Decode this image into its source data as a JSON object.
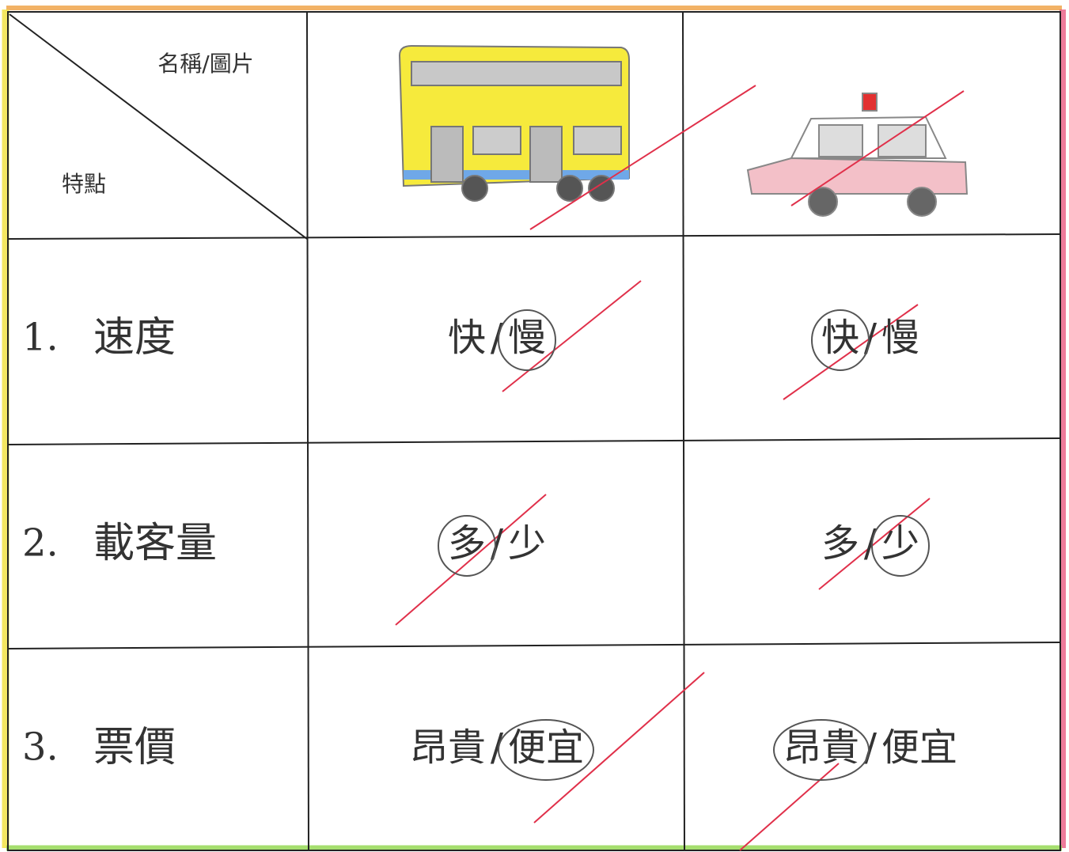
{
  "header": {
    "name_picture": "名稱/圖片",
    "features": "特點"
  },
  "separator": "/",
  "rows": [
    {
      "number": "1.",
      "feature": "速度",
      "bus": {
        "options": [
          "快",
          "慢"
        ],
        "circled": 1
      },
      "taxi": {
        "options": [
          "快",
          "慢"
        ],
        "circled": 0
      }
    },
    {
      "number": "2.",
      "feature": "載客量",
      "bus": {
        "options": [
          "多",
          "少"
        ],
        "circled": 0
      },
      "taxi": {
        "options": [
          "多",
          "少"
        ],
        "circled": 1
      }
    },
    {
      "number": "3.",
      "feature": "票價",
      "bus": {
        "options": [
          "昂貴",
          "便宜"
        ],
        "circled": 1
      },
      "taxi": {
        "options": [
          "昂貴",
          "便宜"
        ],
        "circled": 0
      }
    }
  ]
}
